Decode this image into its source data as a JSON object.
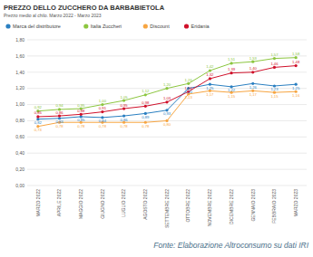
{
  "chart_data": {
    "type": "line",
    "title": "PREZZO DELLO ZUCCHERO DA BARBABIETOLA",
    "subtitle": "Prezzo medio al chilo. Marzo 2022 - Marzo 2023",
    "source": "Fonte: Elaborazione Altroconsumo su dati IRI",
    "categories": [
      "MARZO 2022",
      "APRILE 2022",
      "MAGGIO 2022",
      "GIUGNO 2022",
      "LUGLIO 2022",
      "AGOSTO 2022",
      "SETTEMBRE 2022",
      "OTTOBRE 2022",
      "NOVEMBRE 2022",
      "DICEMBRE 2022",
      "GENNAIO 2023",
      "FEBBRAIO 2023",
      "MARZO 2023"
    ],
    "series": [
      {
        "name": "Marca del distributore",
        "color": "#2a7fc1",
        "marker": "circle",
        "values": [
          0.82,
          0.83,
          0.85,
          0.84,
          0.86,
          0.89,
          0.93,
          1.2,
          1.25,
          1.22,
          1.26,
          1.23,
          1.25
        ],
        "value_labels": [
          "0,82",
          "0,83",
          "0,85",
          "0,84",
          "0,86",
          "0,89",
          "0,93",
          "1,20",
          "1,25",
          "1,22",
          "1,26",
          "1,23",
          "1,25"
        ]
      },
      {
        "name": "Italia Zuccheri",
        "color": "#8cc63f",
        "marker": "circle",
        "values": [
          0.92,
          0.94,
          0.95,
          1.0,
          1.05,
          1.12,
          1.2,
          1.26,
          1.42,
          1.51,
          1.53,
          1.57,
          1.58
        ],
        "value_labels": [
          "0,92",
          "0,94",
          "0,95",
          "1,00",
          "1,05",
          "1,12",
          "1,20",
          "1,26",
          "1,42",
          "1,51",
          "1,53",
          "1,57",
          "1,58"
        ]
      },
      {
        "name": "Discount",
        "color": "#f7a541",
        "marker": "circle",
        "values": [
          0.73,
          0.78,
          0.78,
          0.78,
          0.78,
          0.78,
          0.8,
          1.13,
          1.17,
          1.15,
          1.17,
          1.15,
          1.16
        ],
        "value_labels": [
          "0,73",
          "0,78",
          "0,78",
          "0,78",
          "0,78",
          "0,78",
          "0,80",
          "1,13",
          "1,17",
          "1,15",
          "1,17",
          "1,15",
          "1,16"
        ]
      },
      {
        "name": "Eridania",
        "color": "#d0102a",
        "marker": "circle",
        "values": [
          0.85,
          0.86,
          0.88,
          0.91,
          0.95,
          0.98,
          1.03,
          1.16,
          1.32,
          1.39,
          1.4,
          1.46,
          1.48
        ],
        "value_labels": [
          "0,85",
          "0,86",
          "0,88",
          "0,91",
          "0,95",
          "0,98",
          "1,03",
          "1,16",
          "1,32",
          "1,39",
          "1,40",
          "1,46",
          "1,48"
        ]
      }
    ],
    "ylim": [
      0,
      1.8
    ],
    "yticks": [
      {
        "value": 0,
        "label": "0,00"
      },
      {
        "value": 0.2,
        "label": "0,20"
      },
      {
        "value": 0.4,
        "label": "0,40"
      },
      {
        "value": 0.6,
        "label": "0,60"
      },
      {
        "value": 0.8,
        "label": "0,80"
      },
      {
        "value": 1.0,
        "label": "1,00"
      },
      {
        "value": 1.2,
        "label": "1,20"
      },
      {
        "value": 1.4,
        "label": "1,40"
      },
      {
        "value": 1.6,
        "label": "1,60"
      },
      {
        "value": 1.8,
        "label": "1,80"
      }
    ],
    "grid": true,
    "legend": "top",
    "data_labels": true
  }
}
